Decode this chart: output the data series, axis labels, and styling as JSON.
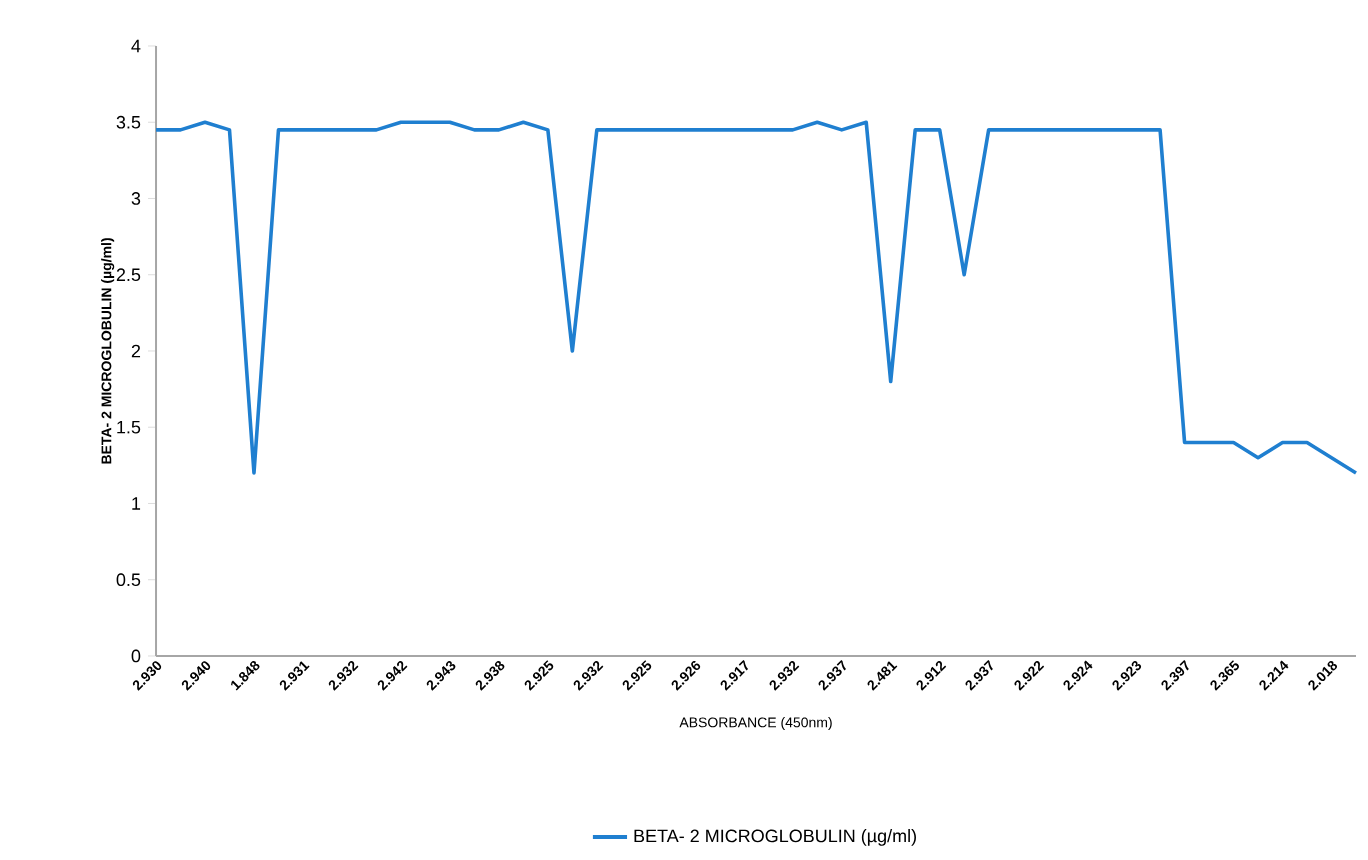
{
  "chart_data": {
    "type": "line",
    "xlabel": "ABSORBANCE (450nm)",
    "ylabel": "BETA- 2 MICROGLOBULIN (µg/ml)",
    "categories": [
      "2.930",
      null,
      "2.940",
      null,
      "1.848",
      null,
      "2.931",
      null,
      "2.932",
      null,
      "2.942",
      null,
      "2.943",
      null,
      "2.938",
      null,
      "2.925",
      null,
      "2.932",
      null,
      "2.925",
      null,
      "2.926",
      null,
      "2.917",
      null,
      "2.932",
      null,
      "2.937",
      null,
      "2.481",
      null,
      "2.912",
      null,
      "2.937",
      null,
      "2.922",
      null,
      "2.924",
      null,
      "2.923",
      null,
      "2.397",
      null,
      "2.365",
      null,
      "2.214",
      null,
      "2.018",
      null
    ],
    "series": [
      {
        "name": "BETA- 2 MICROGLOBULIN (µg/ml)",
        "color": "#1f7fd0",
        "values": [
          3.45,
          3.45,
          3.5,
          3.45,
          1.2,
          3.45,
          3.45,
          3.45,
          3.45,
          3.45,
          3.5,
          3.5,
          3.5,
          3.45,
          3.45,
          3.5,
          3.45,
          2.0,
          3.45,
          3.45,
          3.45,
          3.45,
          3.45,
          3.45,
          3.45,
          3.45,
          3.45,
          3.5,
          3.45,
          3.5,
          1.8,
          3.45,
          3.45,
          2.5,
          3.45,
          3.45,
          3.45,
          3.45,
          3.45,
          3.45,
          3.45,
          3.45,
          1.4,
          1.4,
          1.4,
          1.3,
          1.4,
          1.4,
          1.3,
          1.2
        ]
      }
    ],
    "ylim": [
      0,
      4
    ],
    "yticks": [
      0,
      0.5,
      1,
      1.5,
      2,
      2.5,
      3,
      3.5,
      4
    ],
    "legend": "bottom",
    "marker": "none",
    "line_style": "solid"
  }
}
